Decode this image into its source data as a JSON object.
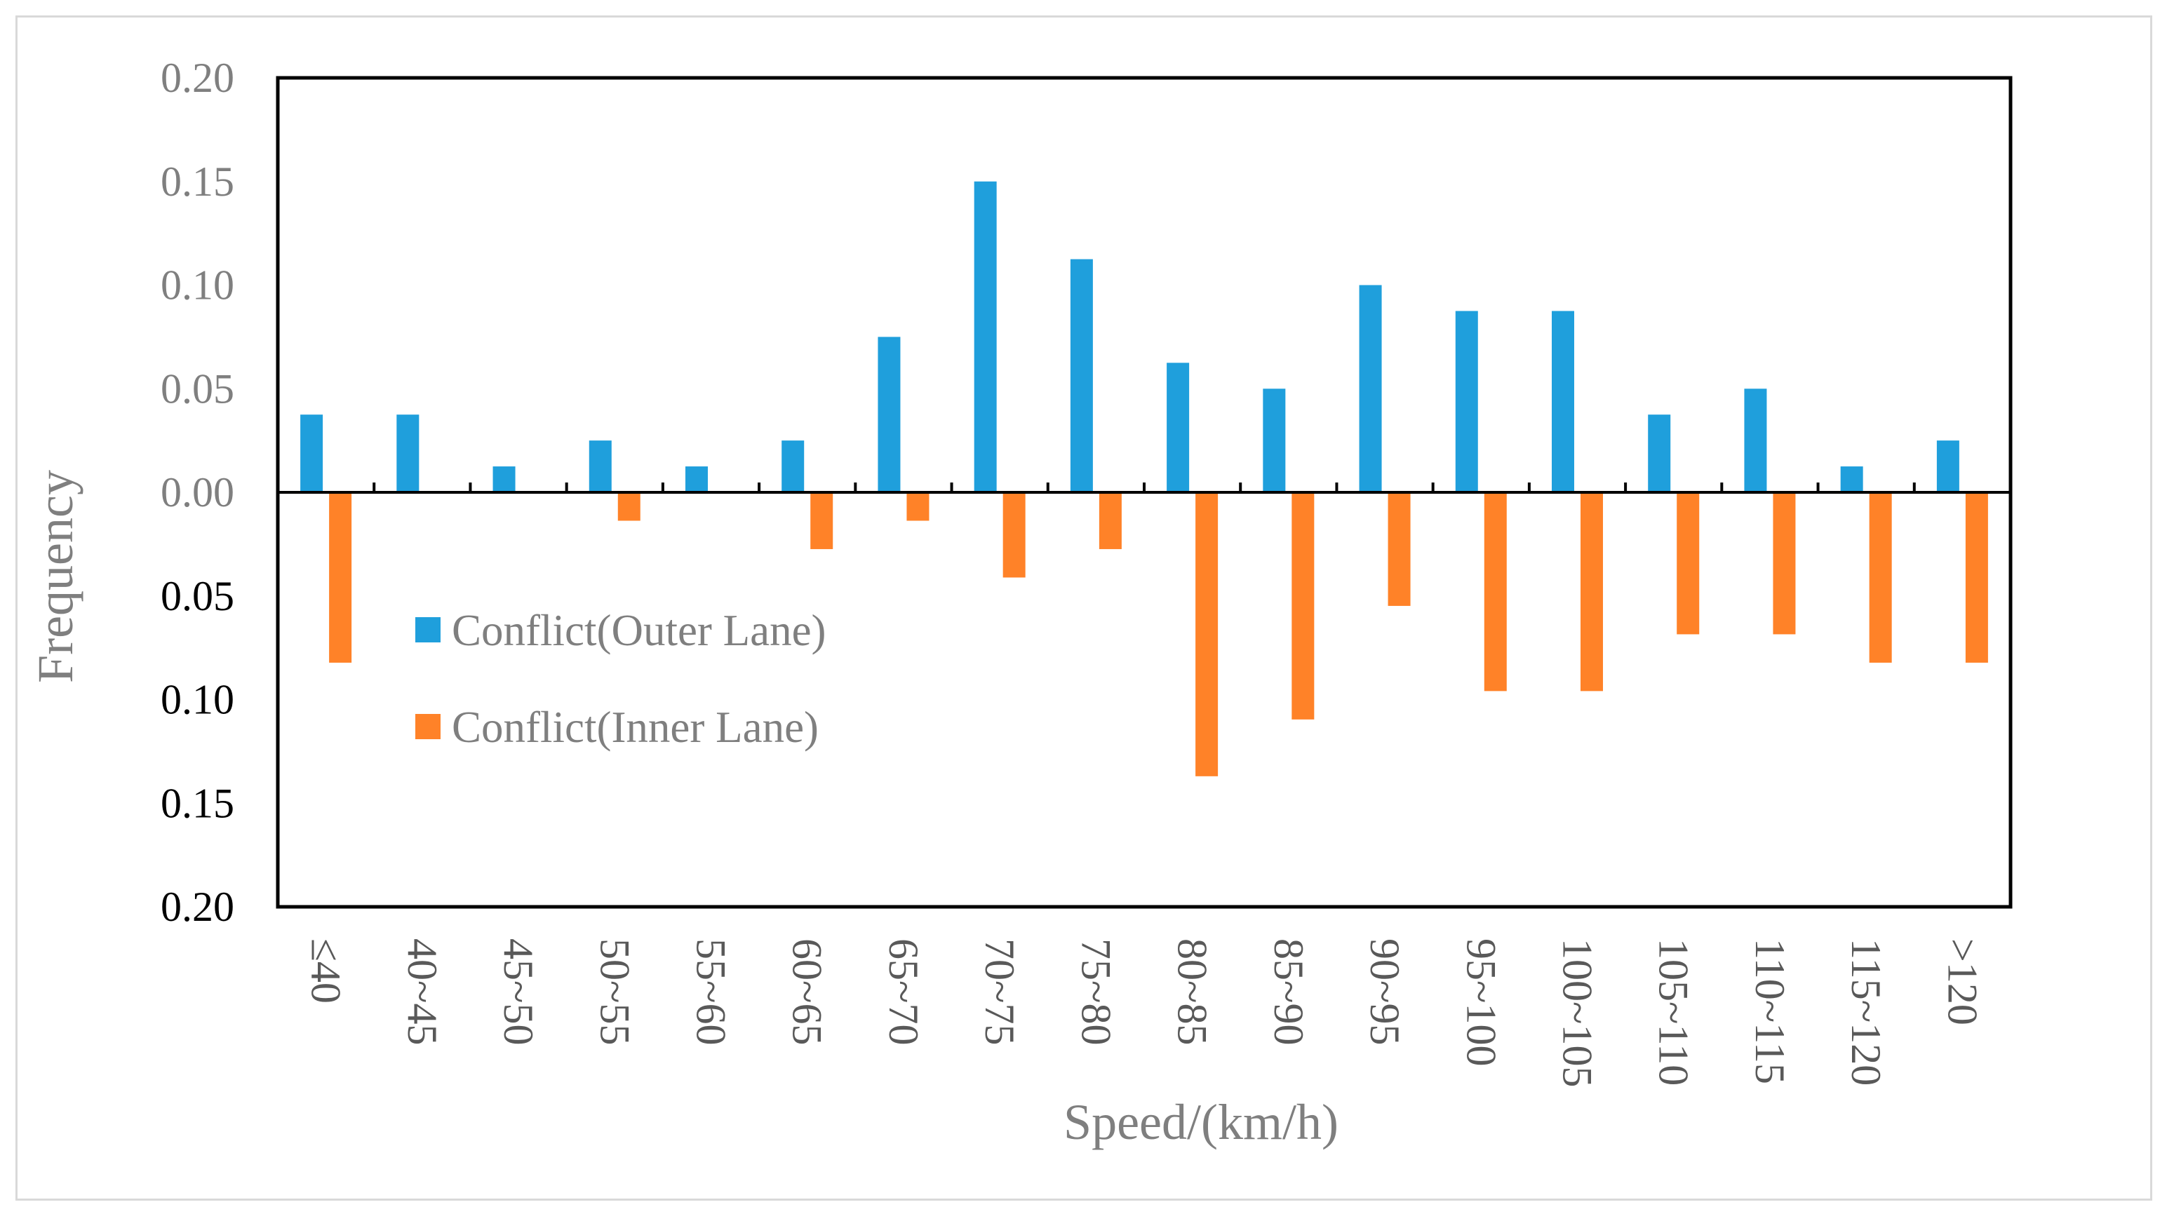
{
  "chart_data": {
    "type": "bar",
    "xlabel": "Speed/(km/h)",
    "ylabel": "Frequency",
    "ylim": [
      -0.2,
      0.2
    ],
    "y_ticks": [
      0.2,
      0.15,
      0.1,
      0.05,
      0.0,
      -0.05,
      -0.1,
      -0.15,
      -0.2
    ],
    "y_tick_labels": [
      "0.20",
      "0.15",
      "0.10",
      "0.05",
      "0.00",
      "0.05",
      "0.10",
      "0.15",
      "0.20"
    ],
    "y_tick_colors": [
      "#7f7f7f",
      "#7f7f7f",
      "#7f7f7f",
      "#7f7f7f",
      "#7f7f7f",
      "#000000",
      "#000000",
      "#000000",
      "#000000"
    ],
    "categories": [
      "≤40",
      "40~45",
      "45~50",
      "50~55",
      "55~60",
      "60~65",
      "65~70",
      "70~75",
      "75~80",
      "80~85",
      "85~90",
      "90~95",
      "95~100",
      "100~105",
      "105~110",
      "110~115",
      "115~120",
      ">120"
    ],
    "series": [
      {
        "name": "Conflict(Outer Lane)",
        "color": "#1f9fdc",
        "values": [
          0.0375,
          0.0375,
          0.0125,
          0.025,
          0.0125,
          0.025,
          0.075,
          0.15,
          0.1125,
          0.0625,
          0.05,
          0.1,
          0.0875,
          0.0875,
          0.0375,
          0.05,
          0.0125,
          0.025
        ]
      },
      {
        "name": "Conflict(Inner Lane)",
        "color": "#ff8228",
        "values": [
          -0.0822,
          0,
          0,
          -0.0137,
          0,
          -0.0274,
          -0.0137,
          -0.0411,
          -0.0274,
          -0.137,
          -0.1096,
          -0.0548,
          -0.0959,
          -0.0959,
          -0.0685,
          -0.0685,
          -0.0822,
          -0.0822
        ]
      }
    ],
    "legend_position": "center-left, below zero line",
    "grid": false
  }
}
